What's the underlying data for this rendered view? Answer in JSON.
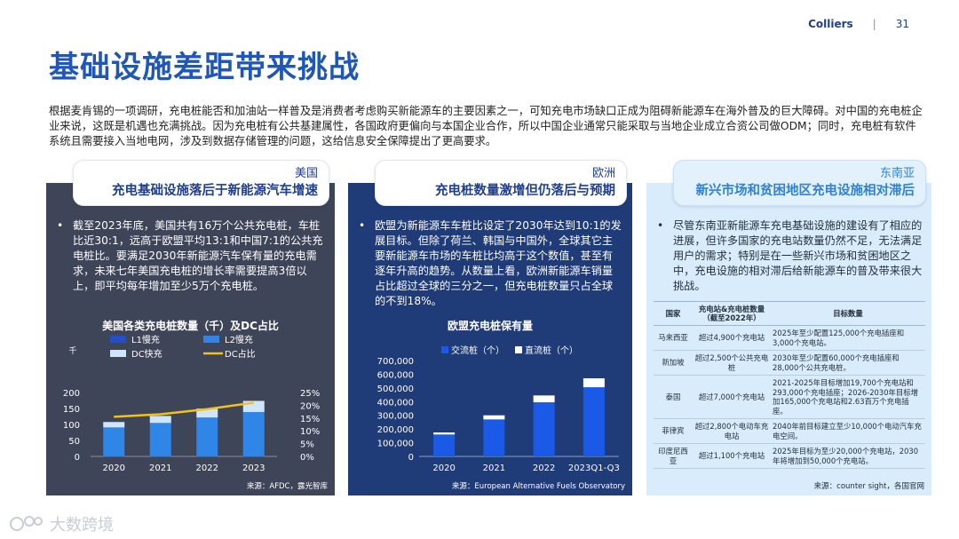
{
  "header": {
    "brand": "Colliers",
    "separator": "|",
    "page_number": "31"
  },
  "title": "基础设施差距带来挑战",
  "intro": "根据麦肯锡的一项调研，充电桩能否和加油站一样普及是消费者考虑购买新能源车的主要因素之一，可知充电市场缺口正成为阻碍新能源车在海外普及的巨大障碍。对中国的充电桩企业来说，这既是机遇也充满挑战。因为充电桩有公共基建属性，各国政府更偏向与本国企业合作，所以中国企业通常只能采取与当地企业成立合资公司做ODM；同时，充电桩有软件系统且需要接入当地电网，涉及到数据存储管理的问题，这给信息安全保障提出了更高要求。",
  "panels": {
    "us": {
      "region": "美国",
      "headline": "充电基础设施落后于新能源汽车增速",
      "bullet": "截至2023年底，美国共有16万个公共充电桩，车桩比近30:1，远高于欧盟平均13:1和中国7:1的公共充电桩比。要满足2030年新能源汽车保有量的充电需求，未来七年美国充电桩的增长率需要提高3倍以上，即平均每年增加至少5万个充电桩。",
      "source": "来源：AFDC，露光智库"
    },
    "eu": {
      "region": "欧洲",
      "headline": "充电桩数量激增但仍落后与预期",
      "bullet": "欧盟为新能源车车桩比设定了2030年达到10:1的发展目标。但除了荷兰、韩国与中国外，全球其它主要新能源车市场的车桩比均高于这个数值，甚至有逐年升高的趋势。从数量上看，欧洲新能源车销量占比超过全球的三分之一，但充电桩数量只占全球的不到18%。",
      "source": "来源：European Alternative Fuels Observatory"
    },
    "sea": {
      "region": "东南亚",
      "headline": "新兴市场和贫困地区充电设施相对滞后",
      "bullet": "尽管东南亚新能源车充电基础设施的建设有了相应的进展，但许多国家的充电站数量仍然不足，无法满足用户的需求；特别是在一些新兴市场和贫困地区之中，充电设施的相对滞后给新能源车的普及带来很大挑战。",
      "source": "来源：counter sight，各国官网",
      "table": {
        "headers": [
          "国家",
          "充电站&充电桩数量（截至2022年）",
          "目标数量"
        ],
        "rows": [
          [
            "马来西亚",
            "超过4,900个充电站",
            "2025年至少配置125,000个充电插座和3,000个充电站。"
          ],
          [
            "新加坡",
            "超过2,500个公共充电桩",
            "2030年至少配置60,000个充电插座和28,000个公共充电桩。"
          ],
          [
            "泰国",
            "超过7,000个充电站",
            "2021-2025年目标增加19,700个充电站和293,000个充电插座；2026-2030年目标增加165,000个充电站和2.63百万个充电插座。"
          ],
          [
            "菲律宾",
            "超过2,800个电动车充电站",
            "2040年前目标建立至少10,000个电动汽车充电空间。"
          ],
          [
            "印度尼西亚",
            "超过1,100个充电站",
            "2025年目标为至少20,000个充电站，2030年将增加到50,000个充电站。"
          ]
        ]
      }
    }
  },
  "chart_data": [
    {
      "type": "bar",
      "title": "美国各类充电桩数量（千）及DC占比",
      "unit_label": "千",
      "categories": [
        "2020",
        "2021",
        "2022",
        "2023"
      ],
      "series": [
        {
          "name": "L1慢充",
          "values": [
            0.7,
            0.7,
            0.7,
            0.7
          ]
        },
        {
          "name": "L2慢充",
          "values": [
            90,
            104,
            121,
            138
          ]
        },
        {
          "name": "DC快充",
          "values": [
            17,
            22,
            28,
            35
          ]
        },
        {
          "name": "DC占比",
          "values": [
            15.5,
            16.5,
            18.5,
            21.0
          ]
        }
      ],
      "ylim": [
        0,
        200
      ],
      "y_ticks": [
        "0",
        "50",
        "100",
        "150",
        "200"
      ],
      "y2lim": [
        0,
        25
      ],
      "y2_ticks": [
        "0%",
        "5%",
        "10%",
        "15%",
        "20%",
        "25%"
      ],
      "colors": {
        "L1慢充": "#1f4fc9",
        "L2慢充": "#2f86e6",
        "DC快充": "#cfe5fb",
        "DC占比": "#f2c21b"
      }
    },
    {
      "type": "bar",
      "title": "欧盟充电桩保有量",
      "categories": [
        "2020",
        "2021",
        "2022",
        "2023Q1-Q3"
      ],
      "series": [
        {
          "name": "交流桩（个）",
          "values": [
            160000,
            270000,
            395000,
            505000
          ]
        },
        {
          "name": "直流桩（个）",
          "values": [
            15000,
            30000,
            50000,
            65000
          ]
        }
      ],
      "ylim": [
        0,
        700000
      ],
      "y_ticks": [
        "0",
        "100,000",
        "200,000",
        "300,000",
        "400,000",
        "500,000",
        "600,000",
        "700,000"
      ],
      "colors": {
        "交流桩（个）": "#1a5ae6",
        "直流桩（个）": "#ffffff"
      }
    }
  ],
  "watermark": "大数跨境"
}
